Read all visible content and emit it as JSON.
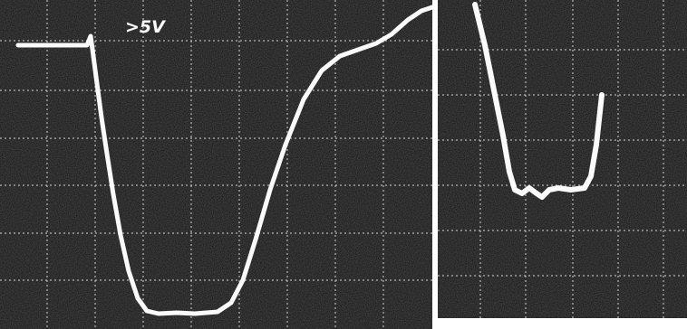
{
  "annotation": ">5V"
}
